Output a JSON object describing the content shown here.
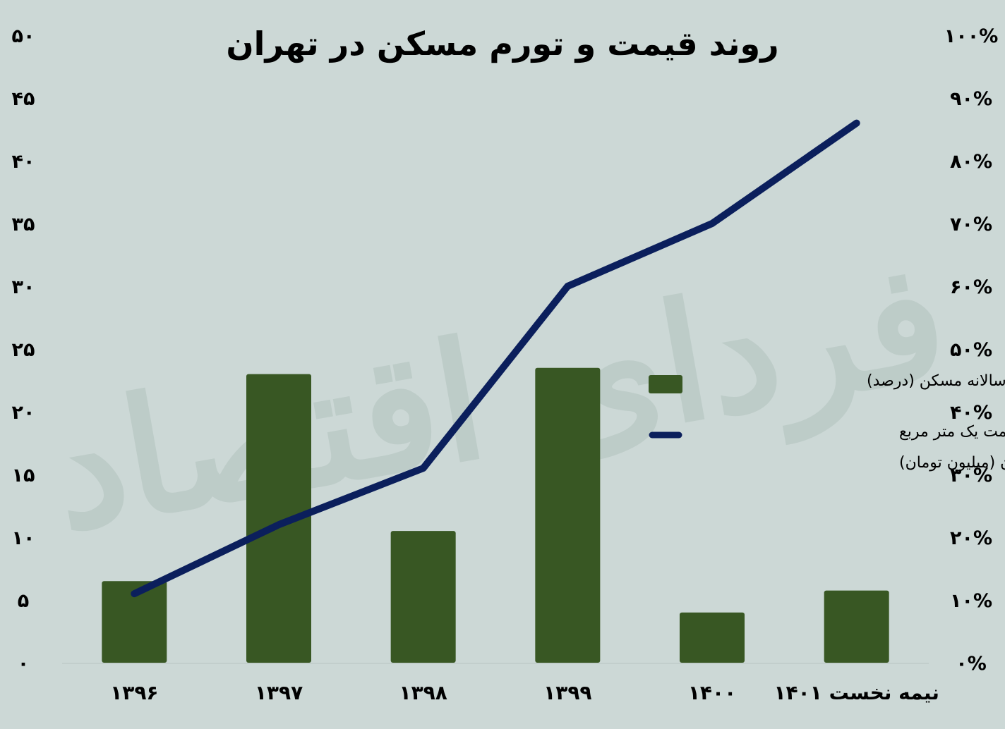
{
  "watermark": "فردای اقتصاد",
  "chart_data": {
    "type": "bar",
    "title": "روند قیمت و تورم مسکن در تهران",
    "categories": [
      "۱۳۹۶",
      "۱۳۹۷",
      "۱۳۹۸",
      "۱۳۹۹",
      "۱۴۰۰",
      "نیمه نخست ۱۴۰۱"
    ],
    "left_axis": {
      "ylim": [
        0,
        50
      ],
      "ticks": [
        "۰",
        "۵",
        "۱۰",
        "۱۵",
        "۲۰",
        "۲۵",
        "۳۰",
        "۳۵",
        "۴۰",
        "۴۵",
        "۵۰"
      ]
    },
    "right_axis": {
      "ylim": [
        0,
        100
      ],
      "ticks": [
        "۰%",
        "۱۰%",
        "۲۰%",
        "۳۰%",
        "۴۰%",
        "۵۰%",
        "۶۰%",
        "۷۰%",
        "۸۰%",
        "۹۰%",
        "۱۰۰%"
      ]
    },
    "series": [
      {
        "name": "تورم سالانه مسکن (درصد)",
        "type": "bar",
        "axis": "right",
        "color": "#385723",
        "values": [
          13,
          46,
          21,
          47,
          8,
          11.5
        ]
      },
      {
        "name": "متوسط قیمت یک متر مربع مسکن در تهران (میلیون تومان)",
        "name_lines": [
          "متوسط قیمت یک متر مربع",
          "مسکن در تهران (میلیون تومان)"
        ],
        "type": "line",
        "axis": "left",
        "color": "#0b1f5c",
        "values": [
          5.5,
          11,
          15.5,
          30,
          35,
          43
        ]
      }
    ],
    "legend": "right-middle",
    "grid": false
  }
}
